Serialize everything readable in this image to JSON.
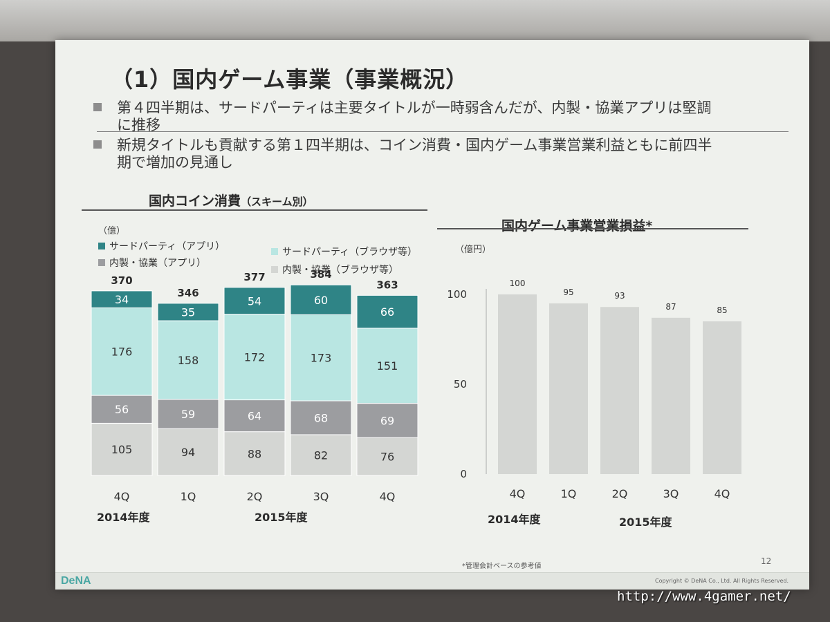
{
  "slide": {
    "title": "（1）国内ゲーム事業（事業概況）",
    "bullets": [
      {
        "line1": "第４四半期は、サードパーティは主要タイトルが一時弱含んだが、内製・協業アプリは堅調",
        "line2": "に推移"
      },
      {
        "line1": "新規タイトルも貢献する第１四半期は、コイン消費・国内ゲーム事業営業利益ともに前四半",
        "line2": "期で増加の見通し"
      }
    ],
    "footnote": "*管理会計ベースの参考値",
    "page_number": "12",
    "logo": "DeNA",
    "copyright": "Copyright © DeNA Co., Ltd. All Rights Reserved."
  },
  "watermark": "http://www.4gamer.net/",
  "chart_data": [
    {
      "type": "bar",
      "stacked": true,
      "title": "国内コイン消費",
      "subtitle": "（スキーム別）",
      "unit": "（億）",
      "categories": [
        "4Q",
        "1Q",
        "2Q",
        "3Q",
        "4Q"
      ],
      "year_labels": [
        "2014年度",
        "2015年度"
      ],
      "totals": [
        370,
        346,
        377,
        384,
        363
      ],
      "series": [
        {
          "name": "内製・協業（ブラウザ等）",
          "color": "#d4d6d3",
          "values": [
            105,
            94,
            88,
            82,
            76
          ]
        },
        {
          "name": "内製・協業（アプリ）",
          "color": "#9c9da0",
          "values": [
            56,
            59,
            64,
            68,
            69
          ]
        },
        {
          "name": "サードパーティ（ブラウザ等）",
          "color": "#b9e6e2",
          "values": [
            176,
            158,
            172,
            173,
            151
          ]
        },
        {
          "name": "サードパーティ（アプリ）",
          "color": "#2f8486",
          "values": [
            34,
            35,
            54,
            60,
            66
          ]
        }
      ]
    },
    {
      "type": "bar",
      "title": "国内ゲーム事業営業損益*",
      "unit": "（億円）",
      "categories": [
        "4Q",
        "1Q",
        "2Q",
        "3Q",
        "4Q"
      ],
      "year_labels": [
        "2014年度",
        "2015年度"
      ],
      "values": [
        100,
        95,
        93,
        87,
        85
      ],
      "ylim": [
        0,
        100
      ],
      "yticks": [
        0,
        50,
        100
      ],
      "bar_color": "#d4d6d3"
    }
  ]
}
